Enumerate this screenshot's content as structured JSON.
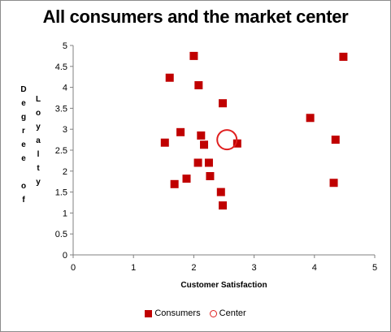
{
  "chart_data": {
    "type": "scatter",
    "title": "All consumers and the market center",
    "xlabel": "Customer Satisfaction",
    "ylabel": "Degree of Loyalty",
    "xlim": [
      0,
      5
    ],
    "ylim": [
      0,
      5
    ],
    "xticks": [
      "0",
      "1",
      "2",
      "3",
      "4",
      "5"
    ],
    "yticks": [
      "0",
      "0.5",
      "1",
      "1.5",
      "2",
      "2.5",
      "3",
      "3.5",
      "4",
      "4.5",
      "5"
    ],
    "grid": false,
    "legend_position": "bottom",
    "series": [
      {
        "name": "Consumers",
        "marker": "square",
        "color": "#c00000",
        "points": [
          {
            "x": 2.0,
            "y": 4.75
          },
          {
            "x": 1.6,
            "y": 4.23
          },
          {
            "x": 2.08,
            "y": 4.05
          },
          {
            "x": 4.48,
            "y": 4.73
          },
          {
            "x": 2.48,
            "y": 3.62
          },
          {
            "x": 3.93,
            "y": 3.27
          },
          {
            "x": 1.78,
            "y": 2.93
          },
          {
            "x": 2.12,
            "y": 2.85
          },
          {
            "x": 1.52,
            "y": 2.68
          },
          {
            "x": 2.17,
            "y": 2.63
          },
          {
            "x": 2.72,
            "y": 2.66
          },
          {
            "x": 4.35,
            "y": 2.75
          },
          {
            "x": 2.07,
            "y": 2.2
          },
          {
            "x": 2.25,
            "y": 2.2
          },
          {
            "x": 2.27,
            "y": 1.88
          },
          {
            "x": 1.88,
            "y": 1.82
          },
          {
            "x": 1.68,
            "y": 1.69
          },
          {
            "x": 2.45,
            "y": 1.5
          },
          {
            "x": 4.32,
            "y": 1.72
          },
          {
            "x": 2.48,
            "y": 1.18
          }
        ]
      },
      {
        "name": "Center",
        "marker": "circle",
        "color": "#e02020",
        "points": [
          {
            "x": 2.55,
            "y": 2.75
          }
        ]
      }
    ]
  }
}
